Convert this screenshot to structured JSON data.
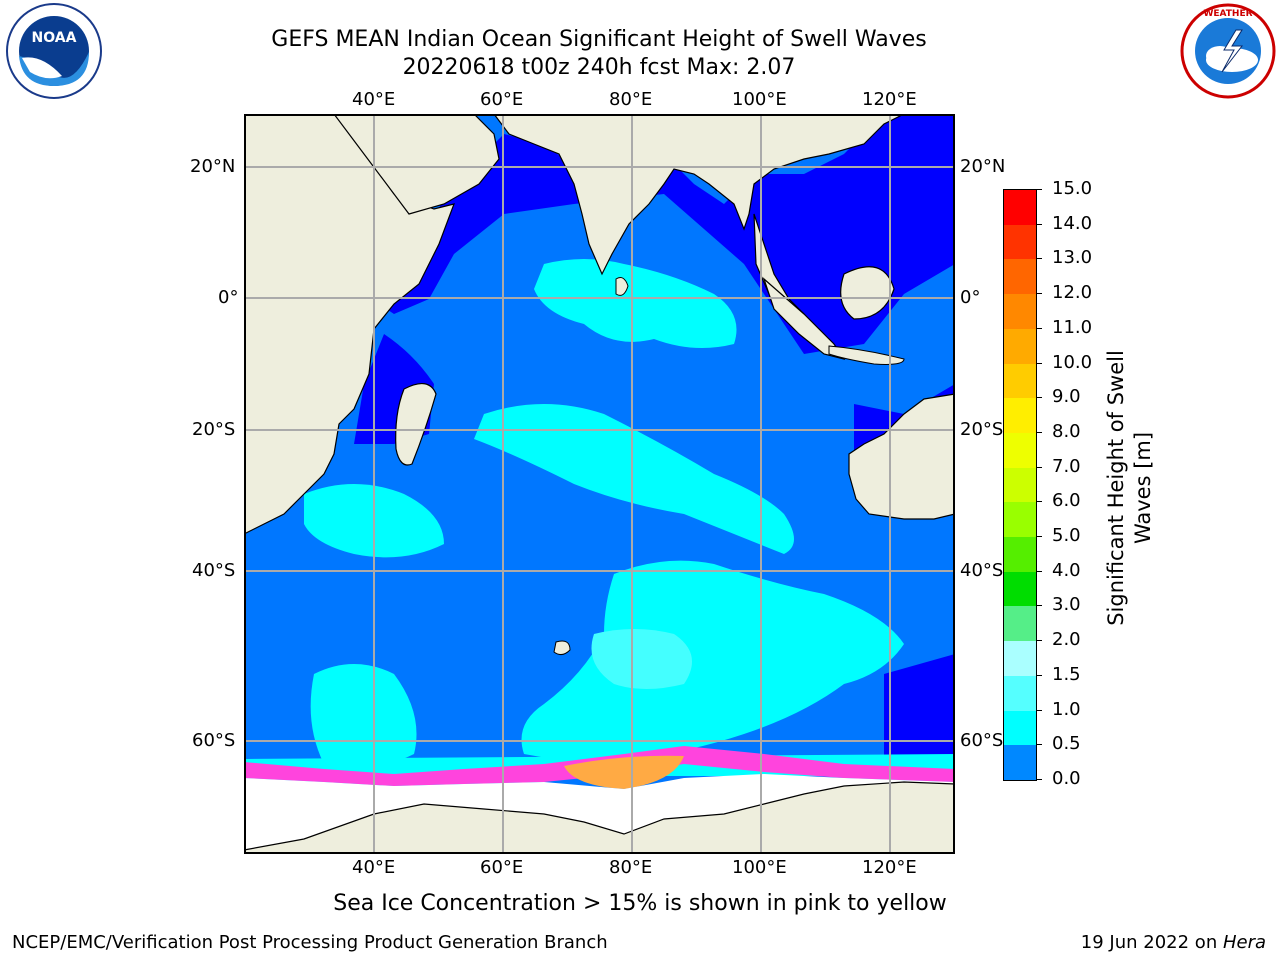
{
  "title_line1": "GEFS MEAN Indian Ocean Significant Height of Swell Waves",
  "title_line2": "20220618 t00z 240h fcst   Max: 2.07",
  "logos": {
    "left": "NOAA",
    "left_ring": "NATIONAL OCEANIC AND ATMOSPHERIC ADMINISTRATION · U.S. DEPARTMENT OF COMMERCE",
    "right": "NATIONAL WEATHER SERVICE"
  },
  "lon_ticks": [
    "40°E",
    "60°E",
    "80°E",
    "100°E",
    "120°E"
  ],
  "lat_ticks": [
    "20°N",
    "0°",
    "20°S",
    "40°S",
    "60°S"
  ],
  "colorbar": {
    "label_line1": "Significant Height of Swell",
    "label_line2": "Waves [m]",
    "ticks": [
      "15.0",
      "14.0",
      "13.0",
      "12.0",
      "11.0",
      "10.0",
      "9.0",
      "8.0",
      "7.0",
      "6.0",
      "5.0",
      "4.0",
      "3.0",
      "2.0",
      "1.5",
      "1.0",
      "0.5",
      "0.0"
    ],
    "colors": [
      "#ff0000",
      "#ff3300",
      "#ff6600",
      "#ff8800",
      "#ffaa00",
      "#ffcc00",
      "#ffee00",
      "#eeff00",
      "#ccff00",
      "#99ff00",
      "#55ee00",
      "#00dd00",
      "#55ee88",
      "#aaffff",
      "#55ffff",
      "#00ffff",
      "#0088ff",
      "#0000ff"
    ]
  },
  "subtitle": "Sea Ice Concentration > 15% is shown in pink to yellow",
  "footer_left": "NCEP/EMC/Verification Post Processing Product Generation Branch",
  "footer_date": "19 Jun 2022 on ",
  "footer_host": "Hera",
  "colors": {
    "land": "#eeeedd",
    "swell_0_0p5": "#0000ff",
    "swell_0p5_1": "#0077ff",
    "swell_1_1p5": "#00ffff",
    "swell_1p5_2": "#44ffff",
    "ice": "#ffffff",
    "ice_edge": "#ff44dd",
    "ice_high": "#ffaa44"
  }
}
